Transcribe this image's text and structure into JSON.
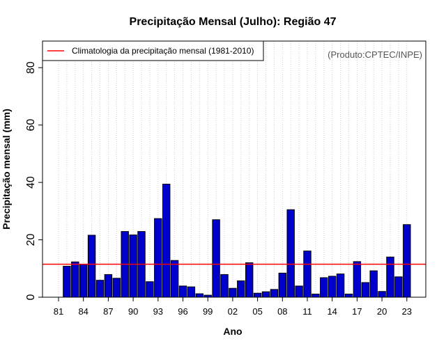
{
  "chart_data": {
    "type": "bar",
    "title": "Precipitação Mensal (Julho): Região 47",
    "xlabel": "Ano",
    "ylabel": "Precipitação mensal (mm)",
    "ylim": [
      0,
      90
    ],
    "y_ticks": [
      0,
      20,
      40,
      60,
      80
    ],
    "grid": "vertical dotted",
    "legend_position": "top-left",
    "legend": [
      {
        "label": "Climatologia da precipitação mensal (1981-2010)",
        "color": "#ff0000"
      }
    ],
    "annotation": "(Produto:CPTEC/INPE)",
    "bar_color": "#0000cc",
    "climatology": 11.5,
    "years": [
      1981,
      1982,
      1983,
      1984,
      1985,
      1986,
      1987,
      1988,
      1989,
      1990,
      1991,
      1992,
      1993,
      1994,
      1995,
      1996,
      1997,
      1998,
      1999,
      2000,
      2001,
      2002,
      2003,
      2004,
      2005,
      2006,
      2007,
      2008,
      2009,
      2010,
      2011,
      2012,
      2013,
      2014,
      2015,
      2016,
      2017,
      2018,
      2019,
      2020,
      2021,
      2022,
      2023
    ],
    "tick_labels": [
      "81",
      "84",
      "87",
      "90",
      "93",
      "96",
      "99",
      "02",
      "05",
      "08",
      "11",
      "14",
      "17",
      "20",
      "23"
    ],
    "tick_years": [
      1981,
      1984,
      1987,
      1990,
      1993,
      1996,
      1999,
      2002,
      2005,
      2008,
      2011,
      2014,
      2017,
      2020,
      2023
    ],
    "values": [
      0,
      10.8,
      12.3,
      11.4,
      21.6,
      5.9,
      7.9,
      6.6,
      22.9,
      21.7,
      22.9,
      5.4,
      27.4,
      39.4,
      12.8,
      3.9,
      3.6,
      1.2,
      0.7,
      27.0,
      7.9,
      3.1,
      5.7,
      12.0,
      1.4,
      1.9,
      2.7,
      8.4,
      30.5,
      3.9,
      16.1,
      1.1,
      6.8,
      7.3,
      8.1,
      1.1,
      12.4,
      5.1,
      9.2,
      2.0,
      14.0,
      7.1,
      25.3
    ]
  }
}
